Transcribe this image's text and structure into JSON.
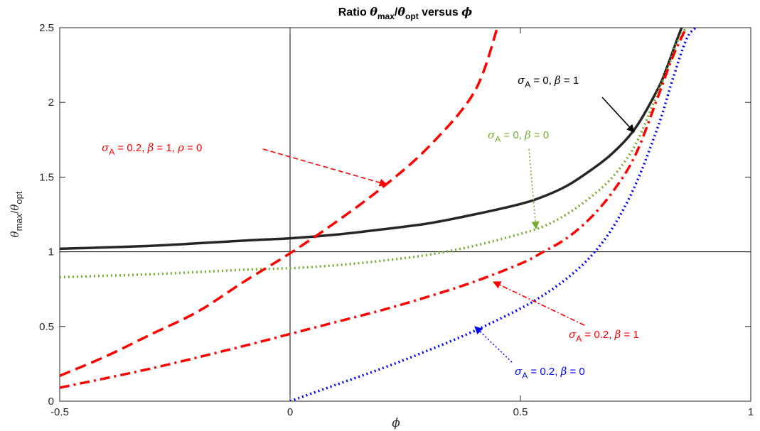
{
  "chart_data": {
    "type": "line",
    "title": {
      "prefix": "Ratio ",
      "num_sym": "θ",
      "num_sub": "max",
      "slash": "/",
      "den_sym": "θ",
      "den_sub": "opt",
      "mid": " versus ",
      "var": "ϕ"
    },
    "xlabel": "ϕ",
    "ylabel": {
      "num_sym": "θ",
      "num_sub": "max",
      "slash": "/",
      "den_sym": "θ",
      "den_sub": "opt"
    },
    "xlim": [
      -0.5,
      1
    ],
    "ylim": [
      0,
      2.5
    ],
    "xticks": [
      -0.5,
      0,
      0.5,
      1
    ],
    "xtick_labels": [
      "-0.5",
      "0",
      "0.5",
      "1"
    ],
    "yticks": [
      0,
      0.5,
      1,
      1.5,
      2,
      2.5
    ],
    "ytick_labels": [
      "0",
      "0.5",
      "1",
      "1.5",
      "2",
      "2.5"
    ],
    "reference_lines": {
      "vertical_x": 0,
      "horizontal_y": 1
    },
    "series": [
      {
        "label_parts": [
          "σ",
          "A",
          " = 0, ",
          "β",
          " = 1"
        ],
        "color": "#262626",
        "dash": "solid",
        "x": [
          -0.5,
          -0.3,
          -0.1,
          0,
          0.1,
          0.2,
          0.3,
          0.4,
          0.5,
          0.55,
          0.6,
          0.65,
          0.7,
          0.75,
          0.8,
          0.82,
          0.84,
          0.85
        ],
        "y": [
          1.02,
          1.04,
          1.075,
          1.09,
          1.115,
          1.15,
          1.19,
          1.25,
          1.32,
          1.37,
          1.44,
          1.54,
          1.66,
          1.83,
          2.1,
          2.25,
          2.42,
          2.5
        ]
      },
      {
        "label_parts": [
          "σ",
          "A",
          " = 0, ",
          "β",
          " = 0"
        ],
        "color": "#77ac30",
        "dash": "dot",
        "x": [
          -0.5,
          -0.3,
          -0.1,
          0,
          0.1,
          0.2,
          0.3,
          0.4,
          0.5,
          0.55,
          0.6,
          0.65,
          0.7,
          0.75,
          0.8,
          0.82,
          0.84,
          0.86
        ],
        "y": [
          0.83,
          0.85,
          0.88,
          0.89,
          0.91,
          0.94,
          0.98,
          1.04,
          1.12,
          1.17,
          1.25,
          1.36,
          1.5,
          1.72,
          2.08,
          2.23,
          2.4,
          2.5
        ]
      },
      {
        "label_parts": [
          "σ",
          "A",
          " = 0.2, ",
          "β",
          " = 1, ",
          "ρ",
          " = 0"
        ],
        "color": "#ff0000",
        "dash": "dash",
        "x": [
          -0.5,
          -0.4,
          -0.3,
          -0.2,
          -0.1,
          0,
          0.1,
          0.2,
          0.3,
          0.4,
          0.45
        ],
        "y": [
          0.17,
          0.3,
          0.45,
          0.6,
          0.8,
          0.99,
          1.2,
          1.43,
          1.7,
          2.07,
          2.5
        ]
      },
      {
        "label_parts": [
          "σ",
          "A",
          " = 0.2, ",
          "β",
          " = 1"
        ],
        "color": "#ff0000",
        "dash": "dashdot",
        "x": [
          -0.5,
          -0.3,
          -0.1,
          0,
          0.1,
          0.2,
          0.3,
          0.4,
          0.5,
          0.55,
          0.6,
          0.65,
          0.7,
          0.75,
          0.8,
          0.83,
          0.86
        ],
        "y": [
          0.09,
          0.22,
          0.37,
          0.45,
          0.53,
          0.61,
          0.7,
          0.8,
          0.92,
          1.0,
          1.09,
          1.22,
          1.4,
          1.65,
          2.05,
          2.3,
          2.5
        ]
      },
      {
        "label_parts": [
          "σ",
          "A",
          " = 0.2, ",
          "β",
          " = 0"
        ],
        "color": "#0000ff",
        "dash": "dot",
        "x": [
          0,
          0.1,
          0.2,
          0.3,
          0.4,
          0.5,
          0.55,
          0.6,
          0.65,
          0.7,
          0.75,
          0.8,
          0.83,
          0.86,
          0.88
        ],
        "y": [
          0,
          0.11,
          0.22,
          0.34,
          0.47,
          0.62,
          0.71,
          0.82,
          0.96,
          1.16,
          1.45,
          1.85,
          2.15,
          2.42,
          2.5
        ]
      }
    ]
  }
}
